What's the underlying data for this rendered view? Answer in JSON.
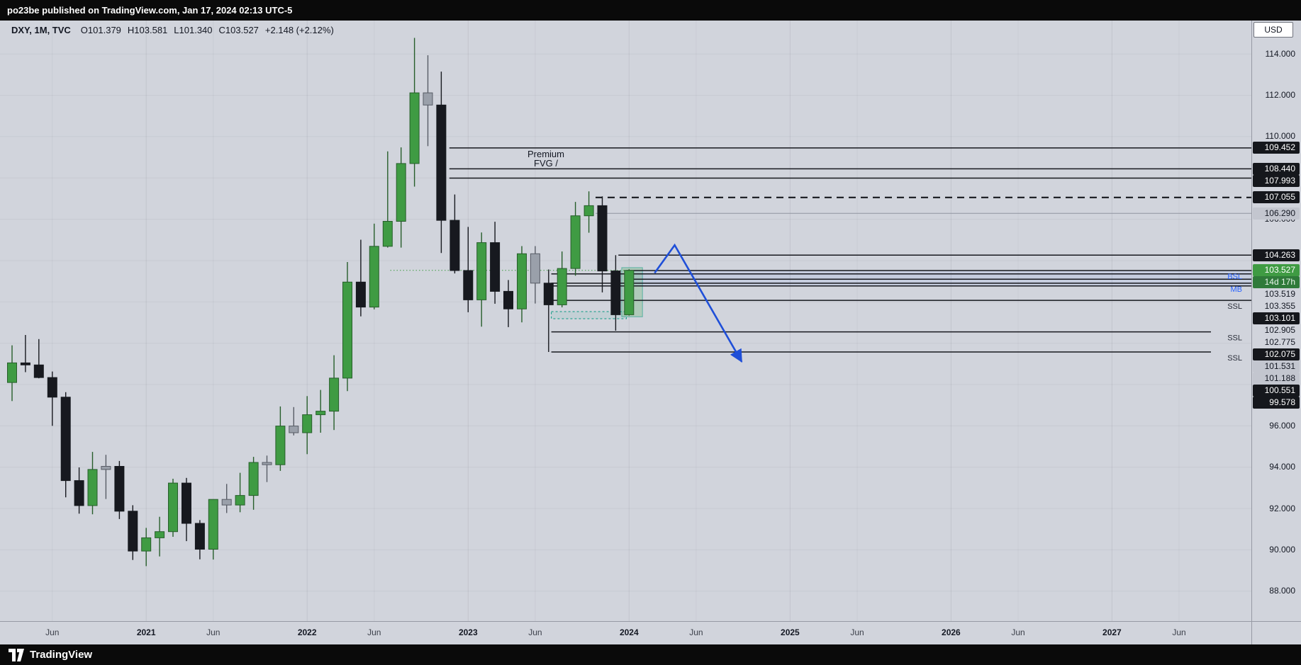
{
  "top_bar": {
    "text": "po23be published on TradingView.com, Jan 17, 2024 02:13 UTC-5"
  },
  "footer": {
    "brand": "TradingView"
  },
  "header": {
    "symbol_title": "DXY, 1M, TVC",
    "ohlc": [
      "O101.379",
      "H103.581",
      "L101.340",
      "C103.527"
    ],
    "change": "+2.148 (+2.12%)"
  },
  "price_axis": {
    "currency": "USD",
    "gridline_values": [
      114,
      112,
      110,
      106,
      96,
      94,
      92,
      90,
      88
    ]
  },
  "colors": {
    "up": "#3f9b43",
    "up_border": "#275e2b",
    "down": "#17191f",
    "flat": "#9aa0aa",
    "flat_border": "#585c66",
    "line_dark": "#17191f",
    "line_gray": "#9094a0",
    "accent_blue": "#1f4fd8",
    "teal": "#089981",
    "badge_dark_bg": "#15171c",
    "badge_green_bg": "#3f9b43",
    "countdown_bg": "#2f7a3a",
    "chart_bg": "#d1d4dc"
  },
  "chart_data": {
    "type": "candlestick",
    "symbol": "DXY",
    "interval": "1M",
    "exchange": "TVC",
    "ylim": [
      86.55,
      115.62
    ],
    "x_axis_labels": [
      {
        "text": "Jun",
        "i": 3,
        "year": false
      },
      {
        "text": "2021",
        "i": 10,
        "year": true
      },
      {
        "text": "Jun",
        "i": 15,
        "year": false
      },
      {
        "text": "2022",
        "i": 22,
        "year": true
      },
      {
        "text": "Jun",
        "i": 27,
        "year": false
      },
      {
        "text": "2023",
        "i": 34,
        "year": true
      },
      {
        "text": "Jun",
        "i": 39,
        "year": false
      },
      {
        "text": "2024",
        "i": 46,
        "year": true
      },
      {
        "text": "Jun",
        "i": 51,
        "year": false
      },
      {
        "text": "2025",
        "i": 58,
        "year": true
      },
      {
        "text": "Jun",
        "i": 63,
        "year": false
      },
      {
        "text": "2026",
        "i": 70,
        "year": true
      },
      {
        "text": "Jun",
        "i": 75,
        "year": false
      },
      {
        "text": "2027",
        "i": 82,
        "year": true
      },
      {
        "text": "Jun",
        "i": 87,
        "year": false
      }
    ],
    "candles": [
      {
        "t": "2020-03",
        "o": 98.1,
        "h": 99.9,
        "l": 97.2,
        "c": 99.05,
        "dir": "up"
      },
      {
        "t": "2020-04",
        "o": 99.05,
        "h": 100.4,
        "l": 98.6,
        "c": 98.95,
        "dir": "down"
      },
      {
        "t": "2020-05",
        "o": 98.95,
        "h": 100.2,
        "l": 98.3,
        "c": 98.34,
        "dir": "down"
      },
      {
        "t": "2020-06",
        "o": 98.34,
        "h": 98.63,
        "l": 96.0,
        "c": 97.39,
        "dir": "down"
      },
      {
        "t": "2020-07",
        "o": 97.39,
        "h": 97.63,
        "l": 92.54,
        "c": 93.35,
        "dir": "down"
      },
      {
        "t": "2020-08",
        "o": 93.35,
        "h": 93.99,
        "l": 91.75,
        "c": 92.14,
        "dir": "down"
      },
      {
        "t": "2020-09",
        "o": 92.14,
        "h": 94.74,
        "l": 91.72,
        "c": 93.89,
        "dir": "up"
      },
      {
        "t": "2020-10",
        "o": 93.89,
        "h": 94.6,
        "l": 92.46,
        "c": 94.04,
        "dir": "flat"
      },
      {
        "t": "2020-11",
        "o": 94.04,
        "h": 94.3,
        "l": 91.49,
        "c": 91.87,
        "dir": "down"
      },
      {
        "t": "2020-12",
        "o": 91.87,
        "h": 92.16,
        "l": 89.51,
        "c": 89.94,
        "dir": "down"
      },
      {
        "t": "2021-01",
        "o": 89.94,
        "h": 91.06,
        "l": 89.21,
        "c": 90.58,
        "dir": "up"
      },
      {
        "t": "2021-02",
        "o": 90.58,
        "h": 91.6,
        "l": 89.68,
        "c": 90.88,
        "dir": "up"
      },
      {
        "t": "2021-03",
        "o": 90.88,
        "h": 93.44,
        "l": 90.63,
        "c": 93.23,
        "dir": "up"
      },
      {
        "t": "2021-04",
        "o": 93.23,
        "h": 93.48,
        "l": 90.42,
        "c": 91.28,
        "dir": "down"
      },
      {
        "t": "2021-05",
        "o": 91.28,
        "h": 91.44,
        "l": 89.54,
        "c": 90.03,
        "dir": "down"
      },
      {
        "t": "2021-06",
        "o": 90.03,
        "h": 92.45,
        "l": 89.53,
        "c": 92.44,
        "dir": "up"
      },
      {
        "t": "2021-07",
        "o": 92.44,
        "h": 93.19,
        "l": 91.78,
        "c": 92.17,
        "dir": "flat"
      },
      {
        "t": "2021-08",
        "o": 92.17,
        "h": 93.73,
        "l": 91.82,
        "c": 92.63,
        "dir": "up"
      },
      {
        "t": "2021-09",
        "o": 92.63,
        "h": 94.5,
        "l": 91.94,
        "c": 94.23,
        "dir": "up"
      },
      {
        "t": "2021-10",
        "o": 94.23,
        "h": 94.56,
        "l": 93.28,
        "c": 94.12,
        "dir": "flat"
      },
      {
        "t": "2021-11",
        "o": 94.12,
        "h": 96.94,
        "l": 93.82,
        "c": 95.99,
        "dir": "up"
      },
      {
        "t": "2021-12",
        "o": 95.99,
        "h": 96.91,
        "l": 95.54,
        "c": 95.67,
        "dir": "flat"
      },
      {
        "t": "2022-01",
        "o": 95.67,
        "h": 97.44,
        "l": 94.63,
        "c": 96.54,
        "dir": "up"
      },
      {
        "t": "2022-02",
        "o": 96.54,
        "h": 97.74,
        "l": 95.67,
        "c": 96.71,
        "dir": "up"
      },
      {
        "t": "2022-03",
        "o": 96.71,
        "h": 99.42,
        "l": 95.8,
        "c": 98.31,
        "dir": "up"
      },
      {
        "t": "2022-04",
        "o": 98.31,
        "h": 103.93,
        "l": 97.68,
        "c": 102.96,
        "dir": "up"
      },
      {
        "t": "2022-05",
        "o": 102.96,
        "h": 105.01,
        "l": 101.3,
        "c": 101.75,
        "dir": "down"
      },
      {
        "t": "2022-06",
        "o": 101.75,
        "h": 105.79,
        "l": 101.64,
        "c": 104.69,
        "dir": "up"
      },
      {
        "t": "2022-07",
        "o": 104.69,
        "h": 109.29,
        "l": 104.63,
        "c": 105.9,
        "dir": "up"
      },
      {
        "t": "2022-08",
        "o": 105.9,
        "h": 109.48,
        "l": 104.63,
        "c": 108.7,
        "dir": "up"
      },
      {
        "t": "2022-09",
        "o": 108.7,
        "h": 114.78,
        "l": 107.58,
        "c": 112.12,
        "dir": "up"
      },
      {
        "t": "2022-10",
        "o": 112.12,
        "h": 113.94,
        "l": 109.54,
        "c": 111.53,
        "dir": "flat"
      },
      {
        "t": "2022-11",
        "o": 111.53,
        "h": 113.15,
        "l": 104.37,
        "c": 105.95,
        "dir": "down"
      },
      {
        "t": "2022-12",
        "o": 105.95,
        "h": 107.2,
        "l": 103.38,
        "c": 103.52,
        "dir": "down"
      },
      {
        "t": "2023-01",
        "o": 103.52,
        "h": 105.63,
        "l": 101.5,
        "c": 102.1,
        "dir": "down"
      },
      {
        "t": "2023-02",
        "o": 102.1,
        "h": 105.36,
        "l": 100.8,
        "c": 104.87,
        "dir": "up"
      },
      {
        "t": "2023-03",
        "o": 104.87,
        "h": 105.88,
        "l": 101.91,
        "c": 102.51,
        "dir": "down"
      },
      {
        "t": "2023-04",
        "o": 102.51,
        "h": 103.06,
        "l": 100.78,
        "c": 101.66,
        "dir": "down"
      },
      {
        "t": "2023-05",
        "o": 101.66,
        "h": 104.7,
        "l": 101.01,
        "c": 104.33,
        "dir": "up"
      },
      {
        "t": "2023-06",
        "o": 104.33,
        "h": 104.7,
        "l": 101.92,
        "c": 102.91,
        "dir": "flat"
      },
      {
        "t": "2023-07",
        "o": 102.91,
        "h": 103.57,
        "l": 99.578,
        "c": 101.86,
        "dir": "down"
      },
      {
        "t": "2023-08",
        "o": 101.86,
        "h": 104.44,
        "l": 101.74,
        "c": 103.62,
        "dir": "up"
      },
      {
        "t": "2023-09",
        "o": 103.62,
        "h": 106.84,
        "l": 103.27,
        "c": 106.17,
        "dir": "up"
      },
      {
        "t": "2023-10",
        "o": 106.17,
        "h": 107.35,
        "l": 105.35,
        "c": 106.66,
        "dir": "up"
      },
      {
        "t": "2023-11",
        "o": 106.66,
        "h": 107.11,
        "l": 102.46,
        "c": 103.5,
        "dir": "down"
      },
      {
        "t": "2023-12",
        "o": 103.5,
        "h": 104.263,
        "l": 100.61,
        "c": 101.38,
        "dir": "down"
      },
      {
        "t": "2024-01",
        "o": 101.379,
        "h": 103.581,
        "l": 101.34,
        "c": 103.527,
        "dir": "up"
      }
    ],
    "levels": [
      {
        "label": "109.452",
        "price": 109.452,
        "from_i": 32.6,
        "style": "solid",
        "tone": "dark"
      },
      {
        "label": "108.440",
        "price": 108.44,
        "from_i": 32.6,
        "style": "solid",
        "tone": "dark"
      },
      {
        "label": "107.993",
        "price": 107.993,
        "from_i": 32.6,
        "style": "solid",
        "tone": "dark"
      },
      {
        "label": "107.055",
        "price": 107.055,
        "from_i": 43.5,
        "style": "dashed",
        "tone": "dark"
      },
      {
        "label": "106.290",
        "price": 106.29,
        "from_i": 43.5,
        "style": "solid",
        "tone": "gray"
      },
      {
        "label": "104.263",
        "price": 104.263,
        "from_i": 45.2,
        "style": "solid",
        "tone": "dark"
      },
      {
        "label": "103.519",
        "price": 103.519,
        "from_i": 45.8,
        "style": "solid",
        "tone": "plain"
      },
      {
        "label": "103.355",
        "price": 103.355,
        "from_i": 40.2,
        "style": "solid",
        "tone": "plain"
      },
      {
        "label": "103.101",
        "price": 103.101,
        "from_i": 45.8,
        "style": "solid",
        "tone": "dark"
      },
      {
        "label": "102.905",
        "price": 102.905,
        "from_i": 40.2,
        "style": "solid",
        "tone": "plain"
      },
      {
        "label": "102.775",
        "price": 102.775,
        "from_i": 40.2,
        "style": "solid",
        "tone": "plain"
      },
      {
        "label": "102.075",
        "price": 102.075,
        "from_i": 40.2,
        "style": "solid",
        "tone": "dark"
      },
      {
        "label": "101.531",
        "price": 101.531,
        "from_i": 45.8,
        "style": "solid",
        "tone": "gray",
        "line": false
      },
      {
        "label": "101.188",
        "price": 101.188,
        "from_i": 45.8,
        "style": "solid",
        "tone": "gray",
        "line": false
      },
      {
        "label": "100.551",
        "price": 100.551,
        "from_i": 40.2,
        "style": "solid",
        "tone": "dark",
        "short": true
      },
      {
        "label": "99.578",
        "price": 99.578,
        "from_i": 40.2,
        "style": "solid",
        "tone": "dark",
        "short": true
      }
    ],
    "current_price": {
      "price": 103.527,
      "label": "103.527",
      "countdown": "14d 17h"
    },
    "price_line": {
      "price": 103.527,
      "from_i": 28.2,
      "to_i": 45.8
    },
    "liquidity_tags": [
      {
        "text": "BSL",
        "price": 103.519,
        "color": "#2962ff"
      },
      {
        "text": "MB",
        "price": 102.905,
        "color": "#2962ff"
      },
      {
        "text": "SSL",
        "price": 102.075,
        "color": "#2a2e39"
      },
      {
        "text": "SSL",
        "price": 100.551,
        "color": "#2a2e39"
      },
      {
        "text": "SSL",
        "price": 99.578,
        "color": "#2a2e39"
      }
    ],
    "annotation": {
      "line1": "Premium",
      "line2": "FVG /",
      "i": 39.8,
      "price": 109.0
    },
    "zones": [
      {
        "name": "current-candle-highlight",
        "i1": 45.45,
        "i2": 47.0,
        "p1": 103.66,
        "p2": 101.28,
        "fill": "rgba(111,183,122,0.35)",
        "stroke": "rgba(8,153,129,0.55)",
        "dash": false
      },
      {
        "name": "demand-box-dashed",
        "i1": 40.2,
        "i2": 45.8,
        "p1": 101.531,
        "p2": 101.188,
        "fill": "rgba(8,153,129,0.07)",
        "stroke": "#089981",
        "dash": true
      },
      {
        "name": "monthly-block-band",
        "i1": 45.8,
        "i2": "axis",
        "p1": 103.519,
        "p2": 102.775,
        "fill": "rgba(41,98,255,0.07)",
        "stroke": null,
        "dash": false
      }
    ],
    "arrow": {
      "color": "#1f4fd8",
      "points": [
        {
          "i": 47.9,
          "p": 103.4
        },
        {
          "i": 49.4,
          "p": 104.75
        },
        {
          "i": 54.4,
          "p": 99.1
        }
      ]
    }
  }
}
